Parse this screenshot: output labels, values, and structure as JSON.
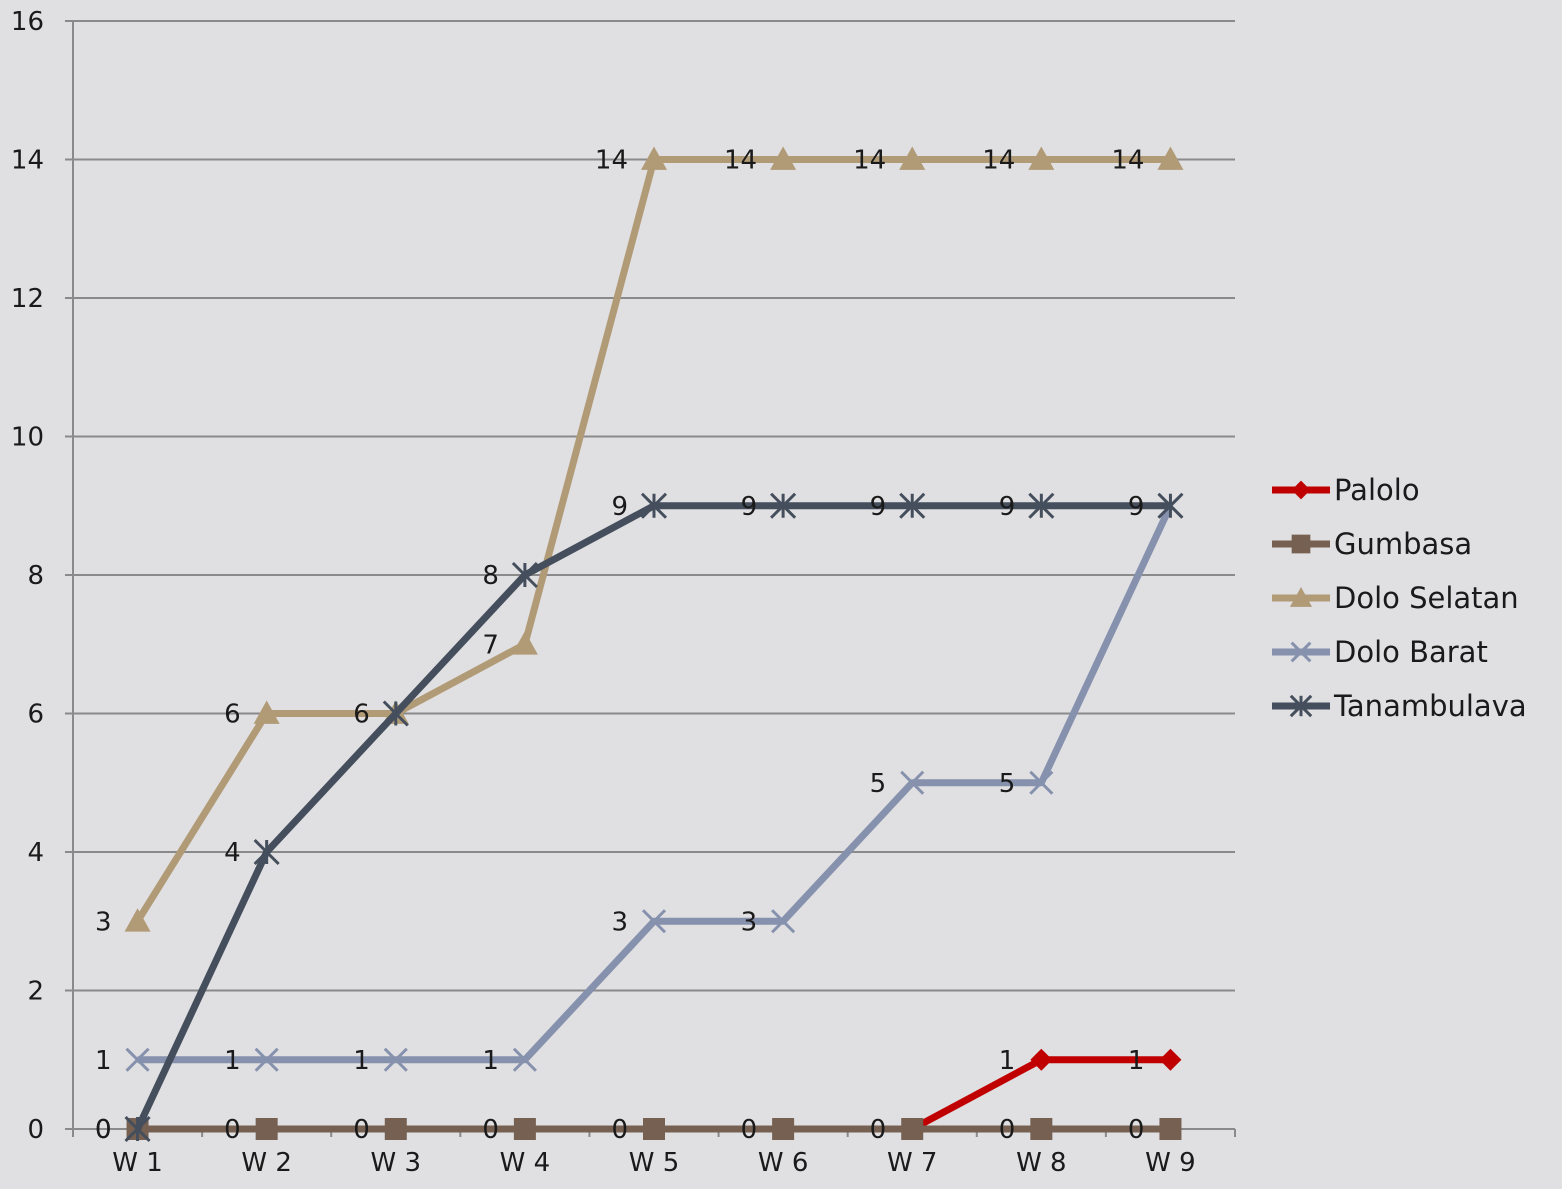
{
  "chart_data": {
    "type": "line",
    "categories": [
      "W 1",
      "W 2",
      "W 3",
      "W 4",
      "W 5",
      "W 6",
      "W 7",
      "W 8",
      "W 9"
    ],
    "ylim": [
      0,
      16
    ],
    "yticks": [
      0,
      2,
      4,
      6,
      8,
      10,
      12,
      14,
      16
    ],
    "grid": true,
    "legend_position": "right",
    "series": [
      {
        "name": "Palolo",
        "values": [
          null,
          null,
          null,
          null,
          null,
          null,
          0,
          1,
          1
        ],
        "labels": [
          null,
          null,
          null,
          null,
          null,
          null,
          null,
          "1",
          "1"
        ],
        "color": "#c00000",
        "marker": "diamond"
      },
      {
        "name": "Gumbasa",
        "values": [
          0,
          0,
          0,
          0,
          0,
          0,
          0,
          0,
          0
        ],
        "labels": [
          "0",
          "0",
          "0",
          "0",
          "0",
          "0",
          "0",
          "0",
          "0"
        ],
        "color": "#766052",
        "marker": "square"
      },
      {
        "name": "Dolo Selatan",
        "values": [
          3,
          6,
          6,
          7,
          14,
          14,
          14,
          14,
          14
        ],
        "labels": [
          "3",
          "6",
          null,
          "7",
          "14",
          "14",
          "14",
          "14",
          "14"
        ],
        "color": "#b19a76",
        "marker": "triangle"
      },
      {
        "name": "Dolo Barat",
        "values": [
          1,
          1,
          1,
          1,
          3,
          3,
          5,
          5,
          9
        ],
        "labels": [
          "1",
          "1",
          "1",
          "1",
          "3",
          "3",
          "5",
          "5",
          null
        ],
        "color": "#8591ad",
        "marker": "x"
      },
      {
        "name": "Tanambulava",
        "values": [
          0,
          4,
          6,
          8,
          9,
          9,
          9,
          9,
          9
        ],
        "labels": [
          "0",
          "4",
          "6",
          "8",
          "9",
          "9",
          "9",
          "9",
          "9"
        ],
        "color": "#444e5c",
        "marker": "star"
      }
    ]
  }
}
